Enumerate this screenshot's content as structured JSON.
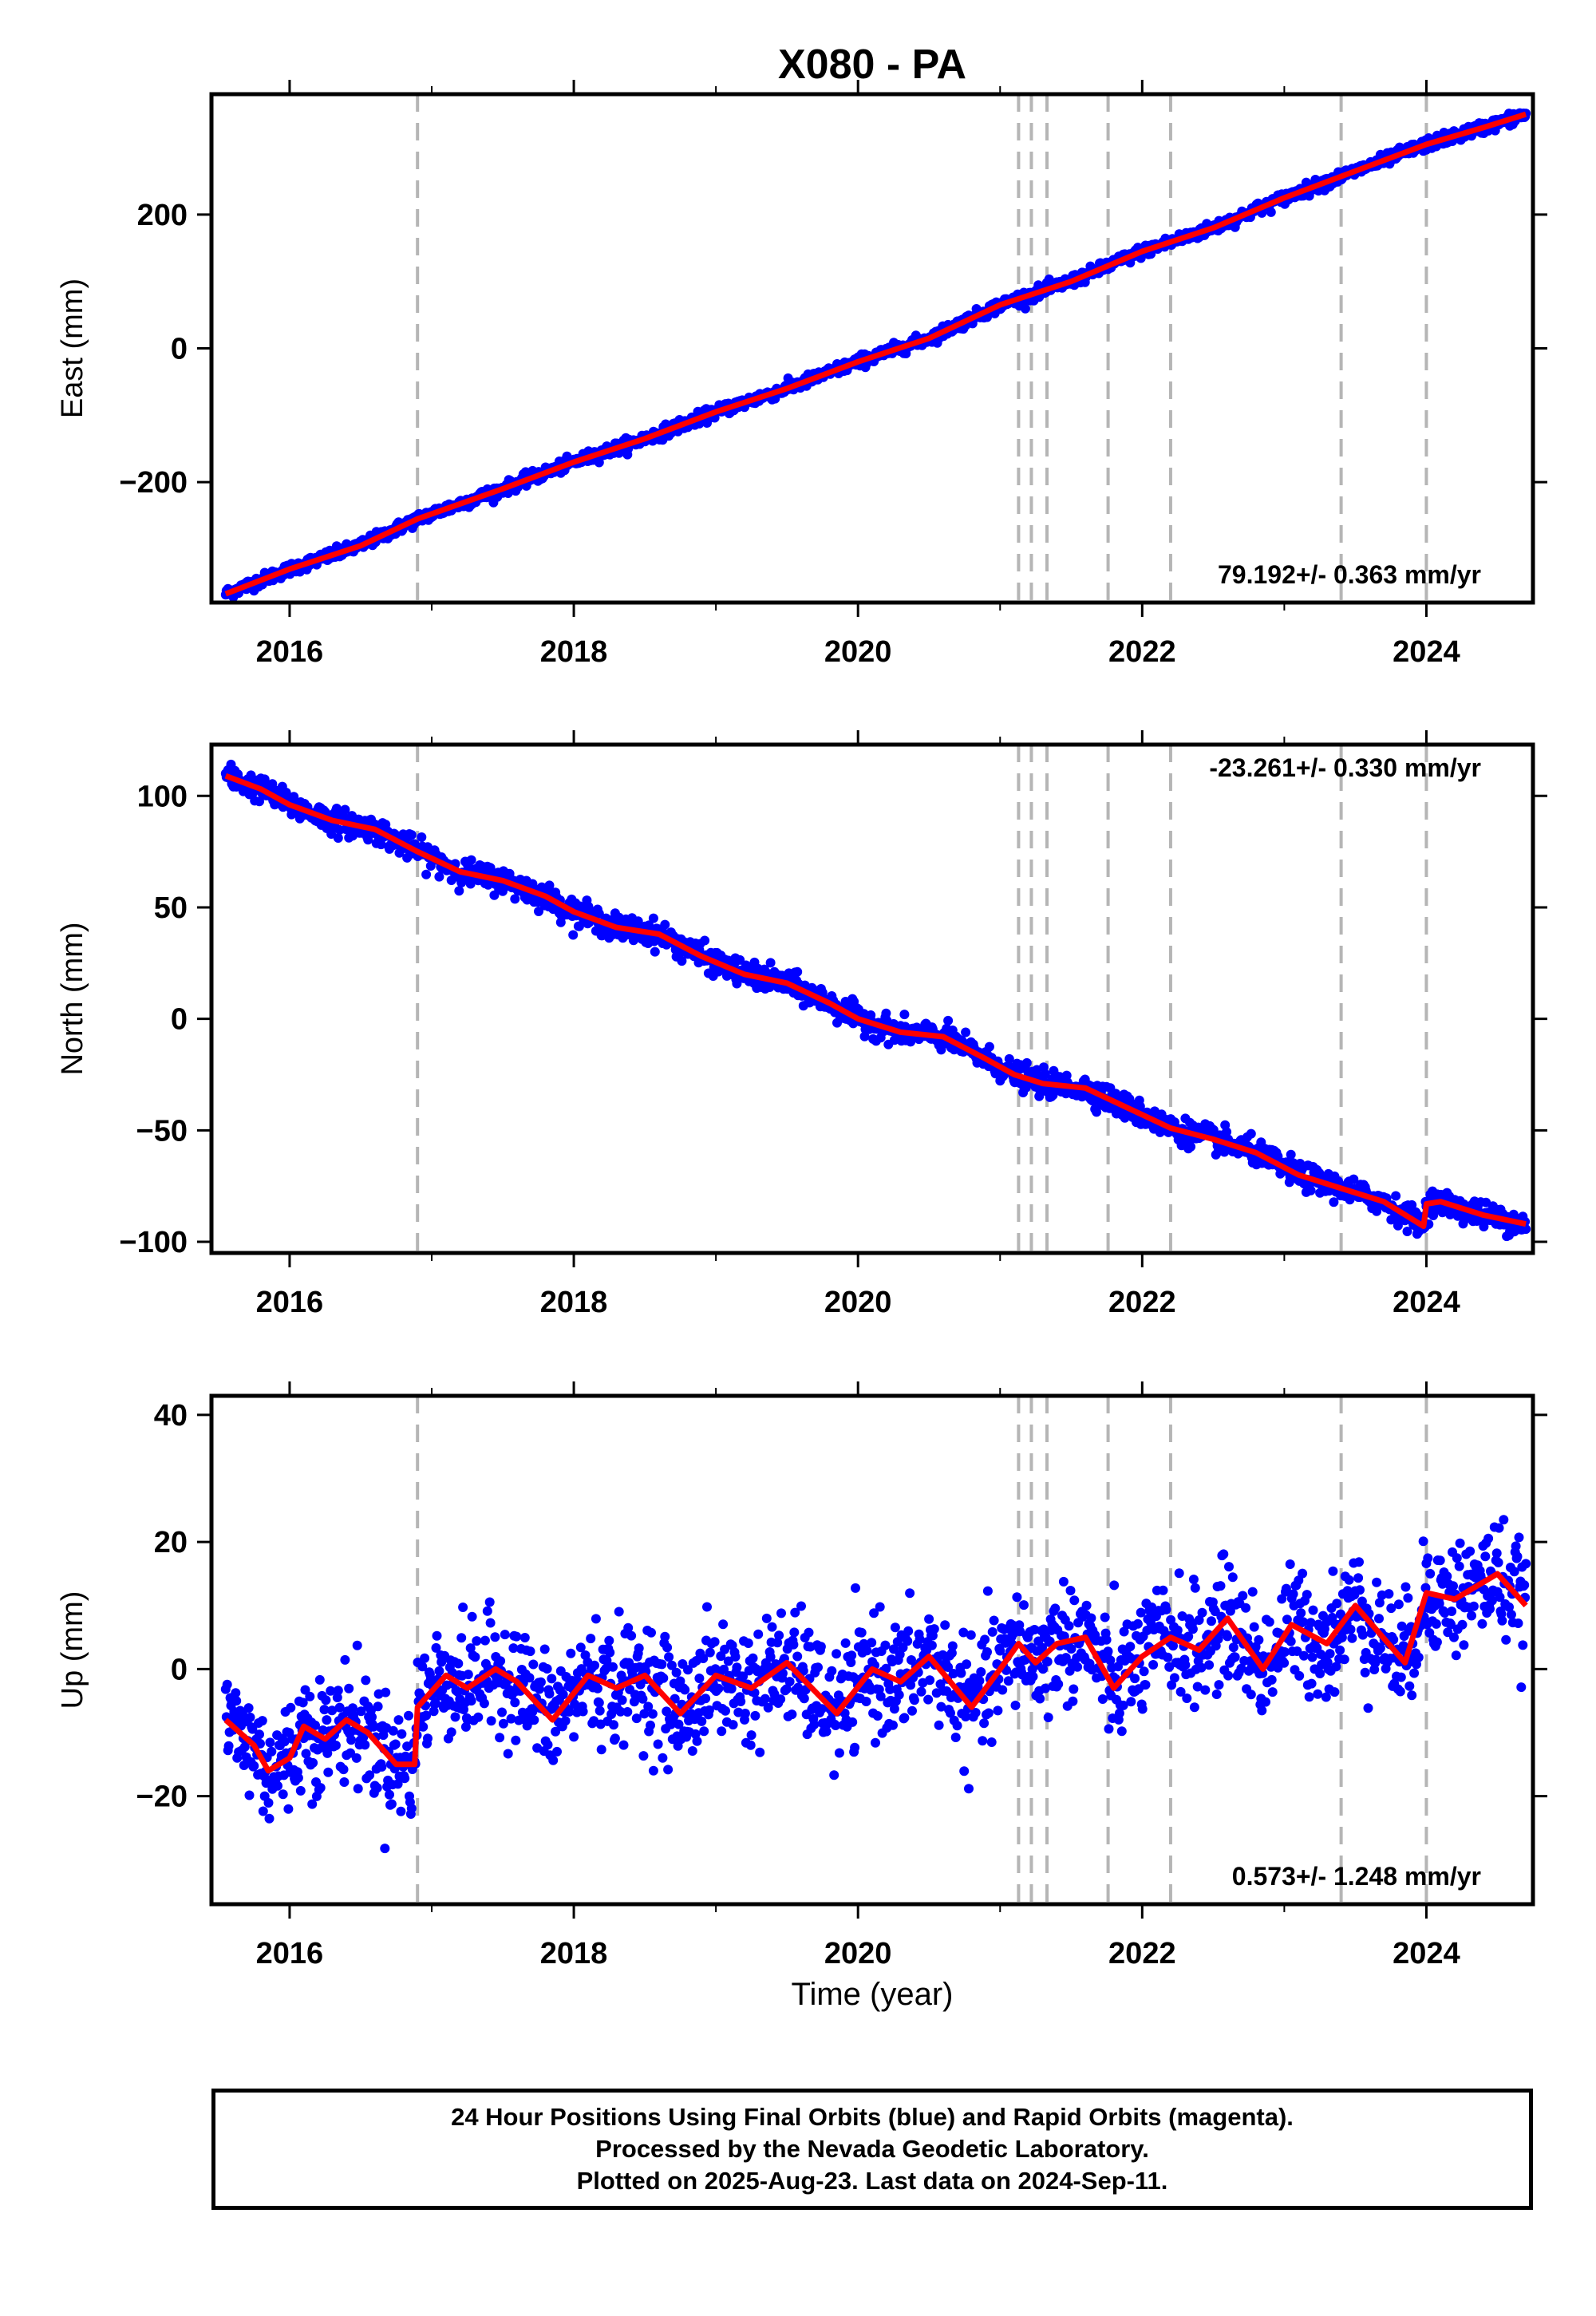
{
  "title": "X080 - PA",
  "xlabel": "Time (year)",
  "colors": {
    "points": "#0000ff",
    "model": "#ff0000",
    "offset_lines": "#b5b5b5",
    "frame": "#000000"
  },
  "footer": {
    "lines": [
      "24 Hour Positions Using Final Orbits (blue) and Rapid Orbits (magenta).",
      "Processed by the Nevada Geodetic Laboratory.",
      "Plotted on 2025-Aug-23. Last data on 2024-Sep-11."
    ]
  },
  "chart_data": [
    {
      "type": "scatter",
      "name": "east",
      "ylabel": "East (mm)",
      "xlim": [
        2015.45,
        2024.75
      ],
      "ylim": [
        -380,
        380
      ],
      "xticks": [
        2016,
        2018,
        2020,
        2022,
        2024
      ],
      "yticks": [
        -200,
        0,
        200
      ],
      "rate_label": "79.192+/- 0.363 mm/yr",
      "rate_position": "bottom-right",
      "grid": false,
      "offset_epochs": [
        2016.9,
        2021.13,
        2021.22,
        2021.33,
        2021.76,
        2022.2,
        2023.4,
        2024.0
      ],
      "data_span": [
        2015.55,
        2024.7
      ],
      "model": {
        "x": [
          2015.55,
          2016.0,
          2016.5,
          2016.9,
          2017.5,
          2018.0,
          2018.5,
          2019.0,
          2019.5,
          2020.0,
          2020.5,
          2021.0,
          2021.5,
          2022.0,
          2022.5,
          2023.0,
          2023.5,
          2024.0,
          2024.4,
          2024.7
        ],
        "y": [
          -367,
          -330,
          -295,
          -255,
          -210,
          -170,
          -135,
          -95,
          -60,
          -20,
          15,
          65,
          100,
          145,
          180,
          225,
          265,
          305,
          330,
          350
        ]
      },
      "scatter_noise_mm": 4.5
    },
    {
      "type": "scatter",
      "name": "north",
      "ylabel": "North (mm)",
      "xlim": [
        2015.45,
        2024.75
      ],
      "ylim": [
        -105,
        123
      ],
      "xticks": [
        2016,
        2018,
        2020,
        2022,
        2024
      ],
      "yticks": [
        -100,
        -50,
        0,
        50,
        100
      ],
      "rate_label": "-23.261+/- 0.330 mm/yr",
      "rate_position": "top-right",
      "grid": false,
      "offset_epochs": [
        2016.9,
        2021.13,
        2021.22,
        2021.33,
        2021.76,
        2022.2,
        2023.4,
        2024.0
      ],
      "data_span": [
        2015.55,
        2024.7
      ],
      "model": {
        "x": [
          2015.55,
          2015.8,
          2016.0,
          2016.3,
          2016.6,
          2016.9,
          2017.2,
          2017.5,
          2017.8,
          2018.0,
          2018.3,
          2018.6,
          2018.9,
          2019.2,
          2019.5,
          2019.8,
          2020.0,
          2020.3,
          2020.6,
          2020.9,
          2021.1,
          2021.3,
          2021.6,
          2021.9,
          2022.2,
          2022.5,
          2022.8,
          2023.1,
          2023.4,
          2023.7,
          2023.98,
          2024.0,
          2024.1,
          2024.4,
          2024.7
        ],
        "y": [
          109,
          103,
          96,
          89,
          85,
          75,
          66,
          62,
          55,
          48,
          41,
          38,
          28,
          20,
          16,
          7,
          0,
          -6,
          -8,
          -18,
          -25,
          -29,
          -31,
          -40,
          -49,
          -54,
          -60,
          -70,
          -76,
          -82,
          -93,
          -83,
          -82,
          -88,
          -92
        ]
      },
      "scatter_noise_mm": 2.8
    },
    {
      "type": "scatter",
      "name": "up",
      "ylabel": "Up (mm)",
      "xlim": [
        2015.45,
        2024.75
      ],
      "ylim": [
        -37,
        43
      ],
      "xticks": [
        2016,
        2018,
        2020,
        2022,
        2024
      ],
      "yticks": [
        -20,
        0,
        20,
        40
      ],
      "rate_label": "0.573+/- 1.248 mm/yr",
      "rate_position": "bottom-right",
      "grid": false,
      "offset_epochs": [
        2016.9,
        2021.13,
        2021.22,
        2021.33,
        2021.76,
        2022.2,
        2023.4,
        2024.0
      ],
      "data_span": [
        2015.55,
        2024.7
      ],
      "model": {
        "x": [
          2015.55,
          2015.75,
          2015.85,
          2016.0,
          2016.1,
          2016.25,
          2016.4,
          2016.55,
          2016.75,
          2016.88,
          2016.9,
          2017.1,
          2017.25,
          2017.45,
          2017.6,
          2017.85,
          2018.1,
          2018.3,
          2018.5,
          2018.75,
          2019.0,
          2019.25,
          2019.5,
          2019.85,
          2020.1,
          2020.3,
          2020.5,
          2020.8,
          2021.0,
          2021.13,
          2021.25,
          2021.4,
          2021.6,
          2021.8,
          2022.0,
          2022.2,
          2022.4,
          2022.6,
          2022.85,
          2023.05,
          2023.3,
          2023.5,
          2023.85,
          2024.0,
          2024.2,
          2024.5,
          2024.7
        ],
        "y": [
          -8,
          -12,
          -16,
          -14,
          -9,
          -11,
          -8,
          -10,
          -15,
          -15,
          -6,
          -1,
          -3,
          0,
          -2,
          -8,
          -1,
          -3,
          -1,
          -7,
          -1,
          -3,
          1,
          -7,
          0,
          -2,
          2,
          -6,
          0,
          4,
          1,
          4,
          5,
          -3,
          2,
          5,
          3,
          8,
          0,
          7,
          4,
          10,
          1,
          12,
          11,
          15,
          10
        ]
      },
      "scatter_noise_mm": 4.5
    }
  ]
}
